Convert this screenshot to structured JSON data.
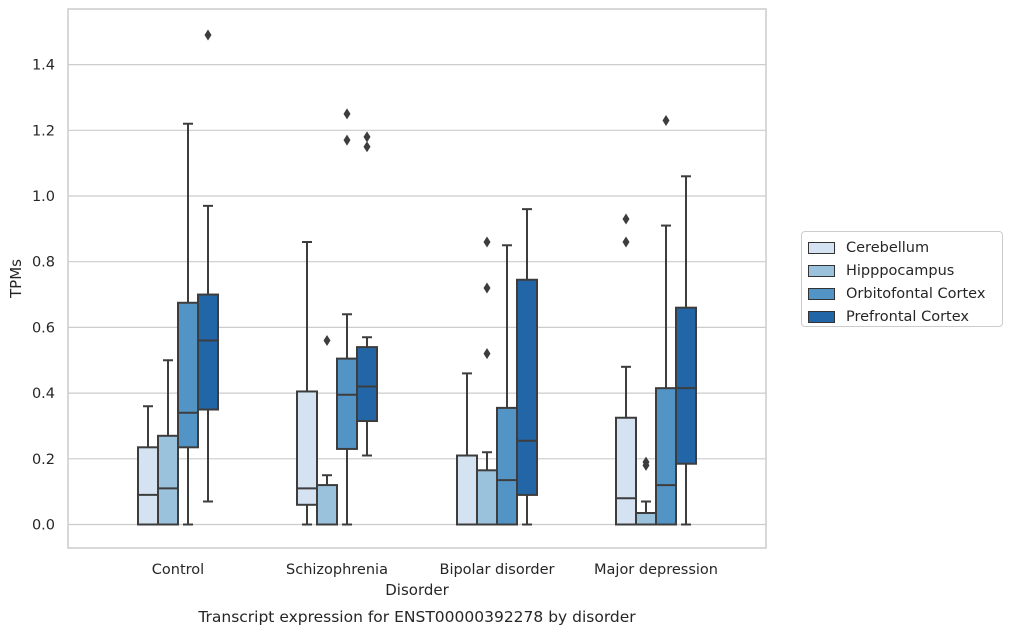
{
  "chart_data": {
    "type": "boxplot",
    "title": "",
    "caption": "Transcript expression for ENST00000392278 by disorder",
    "xlabel": "Disorder",
    "ylabel": "TPMs",
    "ylim": [
      -0.07,
      1.57
    ],
    "yticks": [
      "0.0",
      "0.2",
      "0.4",
      "0.6",
      "0.8",
      "1.0",
      "1.2",
      "1.4"
    ],
    "grid": "horizontal",
    "legend_position": "right",
    "categories": [
      "Control",
      "Schizophrenia",
      "Bipolar disorder",
      "Major depression"
    ],
    "series": [
      {
        "name": "Cerebellum",
        "color": "#d4e2f1",
        "boxes": [
          {
            "whislo": 0.0,
            "q1": 0.0,
            "med": 0.09,
            "q3": 0.235,
            "whishi": 0.36,
            "fliers": []
          },
          {
            "whislo": 0.0,
            "q1": 0.06,
            "med": 0.11,
            "q3": 0.405,
            "whishi": 0.86,
            "fliers": []
          },
          {
            "whislo": 0.0,
            "q1": 0.0,
            "med": 0.0,
            "q3": 0.21,
            "whishi": 0.46,
            "fliers": []
          },
          {
            "whislo": 0.0,
            "q1": 0.0,
            "med": 0.08,
            "q3": 0.325,
            "whishi": 0.48,
            "fliers": [
              0.86,
              0.93
            ]
          }
        ]
      },
      {
        "name": "Hipppocampus",
        "color": "#9ac2dc",
        "boxes": [
          {
            "whislo": 0.0,
            "q1": 0.0,
            "med": 0.11,
            "q3": 0.27,
            "whishi": 0.5,
            "fliers": []
          },
          {
            "whislo": 0.0,
            "q1": 0.0,
            "med": 0.0,
            "q3": 0.12,
            "whishi": 0.15,
            "fliers": [
              0.56
            ]
          },
          {
            "whislo": 0.0,
            "q1": 0.0,
            "med": 0.0,
            "q3": 0.165,
            "whishi": 0.22,
            "fliers": [
              0.52,
              0.72,
              0.86
            ]
          },
          {
            "whislo": 0.0,
            "q1": 0.0,
            "med": 0.0,
            "q3": 0.035,
            "whishi": 0.07,
            "fliers": [
              0.18,
              0.19
            ]
          }
        ]
      },
      {
        "name": "Orbitofontal Cortex",
        "color": "#5394c6",
        "boxes": [
          {
            "whislo": 0.0,
            "q1": 0.235,
            "med": 0.34,
            "q3": 0.675,
            "whishi": 1.22,
            "fliers": []
          },
          {
            "whislo": 0.0,
            "q1": 0.23,
            "med": 0.395,
            "q3": 0.505,
            "whishi": 0.64,
            "fliers": [
              1.17,
              1.25
            ]
          },
          {
            "whislo": 0.0,
            "q1": 0.0,
            "med": 0.135,
            "q3": 0.355,
            "whishi": 0.85,
            "fliers": []
          },
          {
            "whislo": 0.0,
            "q1": 0.0,
            "med": 0.12,
            "q3": 0.415,
            "whishi": 0.91,
            "fliers": [
              1.23
            ]
          }
        ]
      },
      {
        "name": "Prefrontal Cortex",
        "color": "#2366a8",
        "boxes": [
          {
            "whislo": 0.07,
            "q1": 0.35,
            "med": 0.56,
            "q3": 0.7,
            "whishi": 0.97,
            "fliers": [
              1.49
            ]
          },
          {
            "whislo": 0.21,
            "q1": 0.315,
            "med": 0.42,
            "q3": 0.54,
            "whishi": 0.57,
            "fliers": [
              1.15,
              1.18
            ]
          },
          {
            "whislo": 0.0,
            "q1": 0.09,
            "med": 0.255,
            "q3": 0.745,
            "whishi": 0.96,
            "fliers": []
          },
          {
            "whislo": 0.0,
            "q1": 0.185,
            "med": 0.415,
            "q3": 0.66,
            "whishi": 1.06,
            "fliers": []
          }
        ]
      }
    ]
  }
}
